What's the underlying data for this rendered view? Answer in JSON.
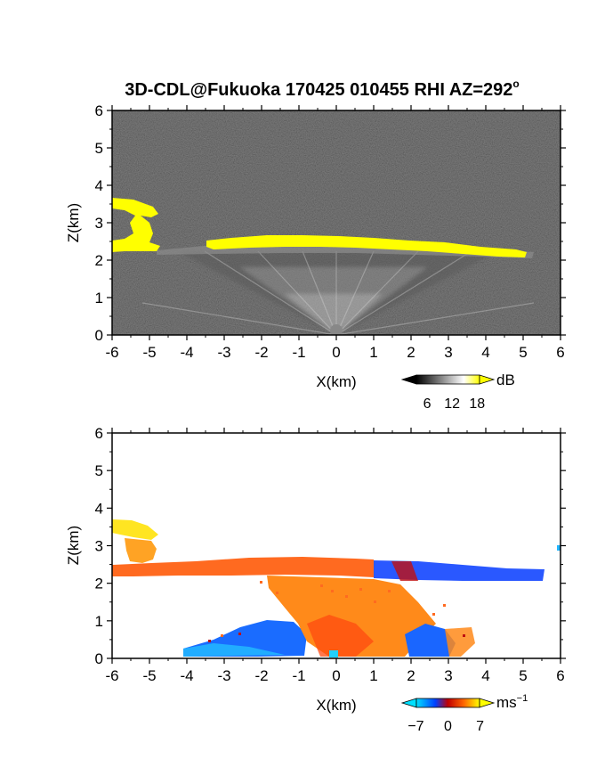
{
  "title": "3D-CDL@Fukuoka 170425 010455 RHI AZ=292",
  "title_degree": "o",
  "chart_data": [
    {
      "type": "heatmap",
      "name": "intensity",
      "xlabel": "X(km)",
      "ylabel": "Z(km)",
      "xlim": [
        -6,
        6
      ],
      "ylim": [
        0,
        6
      ],
      "xticks": [
        "-6",
        "-5",
        "-4",
        "-3",
        "-2",
        "-1",
        "0",
        "1",
        "2",
        "3",
        "4",
        "5",
        "6"
      ],
      "yticks": [
        "0",
        "1",
        "2",
        "3",
        "4",
        "5",
        "6"
      ],
      "background_color": "#202020",
      "colorbar": {
        "unit": "dB",
        "ticks": [
          "6",
          "12",
          "18"
        ],
        "tick_values": [
          6,
          12,
          18
        ],
        "range": [
          0,
          22
        ],
        "colors": [
          "#000000",
          "#ffffff",
          "#ffff00"
        ]
      },
      "layers": [
        {
          "feature": "cloud layer",
          "x": [
            -3.5,
            5.2
          ],
          "z": [
            2.25,
            2.6
          ],
          "value_db": 20,
          "color": "#ffff00"
        },
        {
          "feature": "upper echo",
          "x": [
            -6.0,
            -4.7
          ],
          "z": [
            2.2,
            3.6
          ],
          "value_db": 20,
          "color": "#ffff00"
        },
        {
          "feature": "near-ground returns",
          "x": [
            -4.0,
            4.0
          ],
          "z": [
            0,
            2.2
          ],
          "value_db": 12,
          "color": "#d0d0d0"
        }
      ]
    },
    {
      "type": "heatmap",
      "name": "velocity",
      "xlabel": "X(km)",
      "ylabel": "Z(km)",
      "xlim": [
        -6,
        6
      ],
      "ylim": [
        0,
        6
      ],
      "xticks": [
        "-6",
        "-5",
        "-4",
        "-3",
        "-2",
        "-1",
        "0",
        "1",
        "2",
        "3",
        "4",
        "5",
        "6"
      ],
      "yticks": [
        "0",
        "1",
        "2",
        "3",
        "4",
        "5",
        "6"
      ],
      "colorbar": {
        "unit": "ms",
        "unit_exponent": "−1",
        "ticks": [
          "−7",
          "0",
          "7"
        ],
        "tick_values": [
          -7,
          0,
          7
        ],
        "range": [
          -10,
          10
        ],
        "colors": [
          "#00e0ff",
          "#0040ff",
          "#c00000",
          "#ff6600",
          "#ffff00"
        ]
      },
      "layers": [
        {
          "feature": "upper echo",
          "x": [
            -6.0,
            -4.8
          ],
          "z": [
            3.2,
            3.7
          ],
          "value_ms": 9,
          "color": "#ffee22"
        },
        {
          "feature": "upper echo lower part",
          "x": [
            -5.8,
            -4.9
          ],
          "z": [
            2.6,
            3.2
          ],
          "value_ms": 7,
          "color": "#ffaa22"
        },
        {
          "feature": "cloud layer west",
          "x": [
            -6.0,
            1.0
          ],
          "z": [
            2.2,
            2.65
          ],
          "value_ms": 5,
          "color": "#ff6a22"
        },
        {
          "feature": "cloud layer east",
          "x": [
            1.0,
            5.5
          ],
          "z": [
            2.1,
            2.6
          ],
          "value_ms": -5,
          "color": "#2a5cff"
        },
        {
          "feature": "boundary layer west",
          "x": [
            -3.5,
            -0.8
          ],
          "z": [
            0.1,
            1.0
          ],
          "value_ms": -5,
          "color": "#1a66ff"
        },
        {
          "feature": "boundary layer center",
          "x": [
            -1.0,
            2.5
          ],
          "z": [
            0.0,
            2.0
          ],
          "value_ms": 4,
          "color": "#ff7a1a"
        },
        {
          "feature": "boundary layer east",
          "x": [
            1.8,
            3.2
          ],
          "z": [
            0.1,
            0.8
          ],
          "value_ms": -4,
          "color": "#1a66ff"
        }
      ]
    }
  ]
}
